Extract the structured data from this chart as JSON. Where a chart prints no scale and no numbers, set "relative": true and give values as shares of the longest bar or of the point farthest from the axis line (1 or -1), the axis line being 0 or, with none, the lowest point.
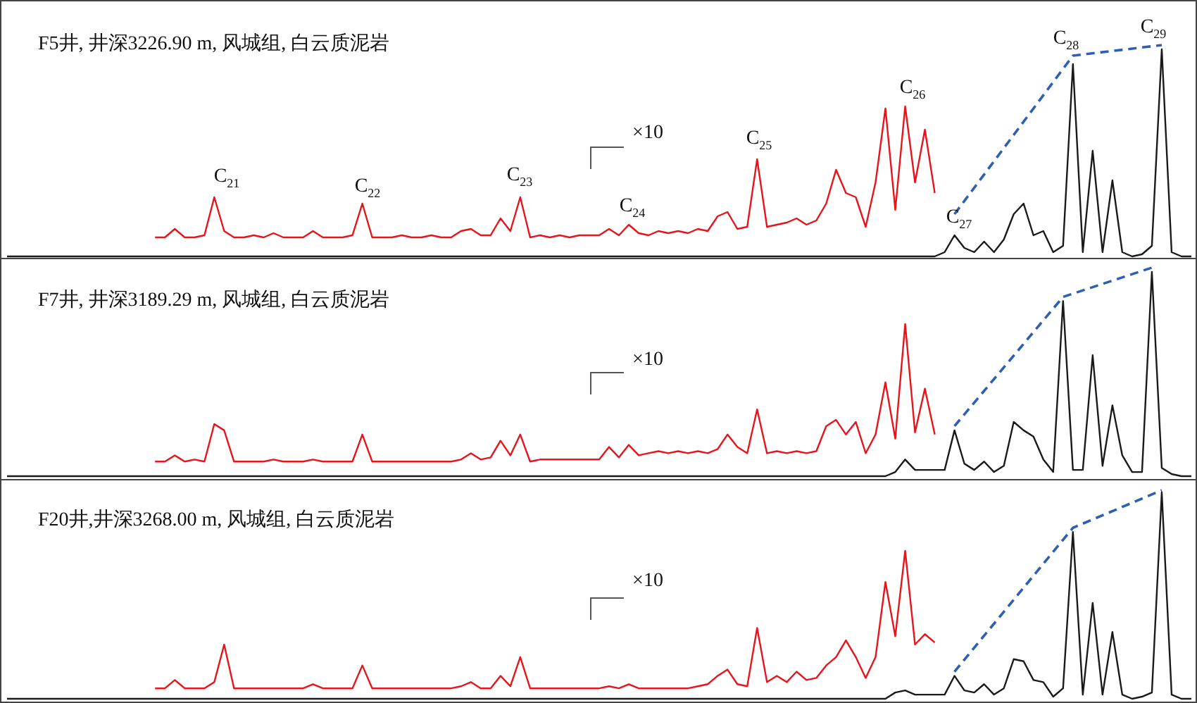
{
  "chart_data": [
    {
      "type": "line",
      "title": "F5井, 井深3226.90 m, 风城组, 白云质泥岩",
      "relative": true,
      "marker": "none",
      "categories": [
        null,
        null,
        null,
        null,
        null,
        null,
        null,
        null,
        null,
        null,
        null,
        null,
        null,
        null,
        null,
        null,
        null,
        null,
        null,
        null,
        null,
        null,
        null,
        null,
        null,
        null,
        null,
        null,
        null,
        null,
        null,
        null,
        null,
        null,
        null,
        null,
        null,
        null,
        null,
        null,
        null,
        null,
        null,
        null,
        null,
        null,
        null,
        null,
        null,
        null,
        null,
        null,
        null,
        null,
        null,
        null,
        null,
        null,
        null,
        null,
        null,
        null,
        null,
        null,
        null,
        null,
        null,
        null,
        null,
        null,
        null,
        null,
        null,
        null,
        null,
        null,
        null,
        null,
        null,
        null,
        null,
        null,
        null,
        null,
        null,
        null,
        null,
        null,
        null,
        null,
        null,
        null,
        null,
        null,
        null,
        null,
        null,
        null,
        null,
        null,
        null,
        null,
        null,
        null,
        null,
        null,
        null,
        null,
        null,
        null,
        null,
        null,
        null,
        null,
        null,
        null,
        null,
        null,
        null,
        null,
        null
      ],
      "series": [
        {
          "color": "#e8141c",
          "values": [
            null,
            null,
            null,
            null,
            null,
            null,
            null,
            null,
            null,
            null,
            null,
            null,
            null,
            null,
            null,
            0.09,
            0.09,
            0.13,
            0.09,
            0.09,
            0.1,
            0.28,
            0.12,
            0.09,
            0.09,
            0.1,
            0.09,
            0.11,
            0.09,
            0.09,
            0.09,
            0.12,
            0.09,
            0.09,
            0.09,
            0.1,
            0.25,
            0.09,
            0.09,
            0.09,
            0.1,
            0.09,
            0.09,
            0.1,
            0.09,
            0.09,
            0.12,
            0.13,
            0.1,
            0.1,
            0.18,
            0.12,
            0.28,
            0.09,
            0.1,
            0.09,
            0.1,
            0.09,
            0.1,
            0.1,
            0.1,
            0.13,
            0.1,
            0.15,
            0.11,
            0.1,
            0.12,
            0.11,
            0.12,
            0.11,
            0.13,
            0.12,
            0.19,
            0.21,
            0.13,
            0.14,
            0.46,
            0.14,
            0.15,
            0.16,
            0.18,
            0.15,
            0.17,
            0.25,
            0.41,
            0.3,
            0.28,
            0.14,
            0.35,
            0.7,
            0.22,
            0.71,
            0.35,
            0.6,
            0.3,
            null,
            null,
            null,
            null,
            null,
            null,
            null,
            null,
            null,
            null,
            null,
            null,
            null,
            null,
            null,
            null,
            null,
            null,
            null,
            null,
            null,
            null,
            null,
            null,
            null,
            null
          ]
        },
        {
          "color": "#1a1a1a",
          "values": [
            0,
            0,
            0,
            0,
            0,
            0,
            0,
            0,
            0,
            0,
            0,
            0,
            0,
            0,
            0,
            0,
            0,
            0,
            0,
            0,
            0,
            0,
            0,
            0,
            0,
            0,
            0,
            0,
            0,
            0,
            0,
            0,
            0,
            0,
            0,
            0,
            0,
            0,
            0,
            0,
            0,
            0,
            0,
            0,
            0,
            0,
            0,
            0,
            0,
            0,
            0,
            0,
            0,
            0,
            0,
            0,
            0,
            0,
            0,
            0,
            0,
            0,
            0,
            0,
            0,
            0,
            0,
            0,
            0,
            0,
            0,
            0,
            0,
            0,
            0,
            0,
            0,
            0,
            0,
            0,
            0,
            0,
            0,
            0,
            0,
            0,
            0,
            0,
            0,
            0,
            0,
            0,
            0,
            0,
            0,
            0.02,
            0.1,
            0.04,
            0.02,
            0.07,
            0.02,
            0.08,
            0.2,
            0.25,
            0.1,
            0.12,
            0.02,
            0.05,
            0.91,
            0.02,
            0.5,
            0.02,
            0.36,
            0.02,
            0,
            0.01,
            0.05,
            0.98,
            0.02,
            0,
            0
          ]
        },
        {
          "color": "#2f5fb3",
          "line_style": "dashed",
          "values": [
            null,
            null,
            null,
            null,
            null,
            null,
            null,
            null,
            null,
            null,
            null,
            null,
            null,
            null,
            null,
            null,
            null,
            null,
            null,
            null,
            null,
            null,
            null,
            null,
            null,
            null,
            null,
            null,
            null,
            null,
            null,
            null,
            null,
            null,
            null,
            null,
            null,
            null,
            null,
            null,
            null,
            null,
            null,
            null,
            null,
            null,
            null,
            null,
            null,
            null,
            null,
            null,
            null,
            null,
            null,
            null,
            null,
            null,
            null,
            null,
            null,
            null,
            null,
            null,
            null,
            null,
            null,
            null,
            null,
            null,
            null,
            null,
            null,
            null,
            null,
            null,
            null,
            null,
            null,
            null,
            null,
            null,
            null,
            null,
            null,
            null,
            null,
            null,
            null,
            null,
            null,
            null,
            null,
            null,
            null,
            null,
            0.2,
            null,
            null,
            null,
            null,
            null,
            null,
            null,
            null,
            null,
            null,
            null,
            0.95,
            null,
            null,
            null,
            null,
            null,
            null,
            null,
            null,
            1,
            null,
            null,
            null
          ]
        }
      ],
      "annotations": [
        "C$_{21}$",
        "C$_{22}$",
        "C$_{23}$",
        "C$_{24}$",
        "C$_{25}$",
        "C$_{26}$",
        "C$_{27}$",
        "C$_{28}$",
        "C$_{29}$",
        "×10"
      ]
    },
    {
      "type": "line",
      "title": "F7井, 井深3189.29 m, 风城组, 白云质泥岩",
      "relative": true,
      "marker": "none",
      "categories": [
        null,
        null,
        null,
        null,
        null,
        null,
        null,
        null,
        null,
        null,
        null,
        null,
        null,
        null,
        null,
        null,
        null,
        null,
        null,
        null,
        null,
        null,
        null,
        null,
        null,
        null,
        null,
        null,
        null,
        null,
        null,
        null,
        null,
        null,
        null,
        null,
        null,
        null,
        null,
        null,
        null,
        null,
        null,
        null,
        null,
        null,
        null,
        null,
        null,
        null,
        null,
        null,
        null,
        null,
        null,
        null,
        null,
        null,
        null,
        null,
        null,
        null,
        null,
        null,
        null,
        null,
        null,
        null,
        null,
        null,
        null,
        null,
        null,
        null,
        null,
        null,
        null,
        null,
        null,
        null,
        null,
        null,
        null,
        null,
        null,
        null,
        null,
        null,
        null,
        null,
        null,
        null,
        null,
        null,
        null,
        null,
        null,
        null,
        null,
        null,
        null,
        null,
        null,
        null,
        null,
        null,
        null,
        null,
        null,
        null,
        null,
        null,
        null,
        null,
        null,
        null,
        null,
        null,
        null,
        null,
        null
      ],
      "series": [
        {
          "color": "#e8141c",
          "values": [
            null,
            null,
            null,
            null,
            null,
            null,
            null,
            null,
            null,
            null,
            null,
            null,
            null,
            null,
            null,
            0.07,
            0.07,
            0.1,
            0.07,
            0.08,
            0.07,
            0.25,
            0.22,
            0.07,
            0.07,
            0.07,
            0.07,
            0.08,
            0.07,
            0.07,
            0.07,
            0.08,
            0.07,
            0.07,
            0.07,
            0.07,
            0.2,
            0.07,
            0.07,
            0.07,
            0.07,
            0.07,
            0.07,
            0.07,
            0.07,
            0.07,
            0.08,
            0.11,
            0.08,
            0.09,
            0.17,
            0.1,
            0.2,
            0.07,
            0.08,
            0.08,
            0.08,
            0.08,
            0.08,
            0.08,
            0.08,
            0.14,
            0.09,
            0.15,
            0.1,
            0.11,
            0.12,
            0.11,
            0.12,
            0.11,
            0.12,
            0.11,
            0.13,
            0.2,
            0.14,
            0.11,
            0.32,
            0.11,
            0.12,
            0.11,
            0.12,
            0.11,
            0.12,
            0.24,
            0.27,
            0.2,
            0.26,
            0.11,
            0.2,
            0.45,
            0.18,
            0.73,
            0.21,
            0.42,
            0.2,
            null,
            null,
            null,
            null,
            null,
            null,
            null,
            null,
            null,
            null,
            null,
            null,
            null,
            null,
            null,
            null,
            null,
            null,
            null,
            null,
            null,
            null,
            null,
            null,
            null,
            null
          ]
        },
        {
          "color": "#1a1a1a",
          "values": [
            0,
            0,
            0,
            0,
            0,
            0,
            0,
            0,
            0,
            0,
            0,
            0,
            0,
            0,
            0,
            0,
            0,
            0,
            0,
            0,
            0,
            0,
            0,
            0,
            0,
            0,
            0,
            0,
            0,
            0,
            0,
            0,
            0,
            0,
            0,
            0,
            0,
            0,
            0,
            0,
            0,
            0,
            0,
            0,
            0,
            0,
            0,
            0,
            0,
            0,
            0,
            0,
            0,
            0,
            0,
            0,
            0,
            0,
            0,
            0,
            0,
            0,
            0,
            0,
            0,
            0,
            0,
            0,
            0,
            0,
            0,
            0,
            0,
            0,
            0,
            0,
            0,
            0,
            0,
            0,
            0,
            0,
            0,
            0,
            0,
            0,
            0,
            0,
            0,
            0,
            0.02,
            0.08,
            0.03,
            0.03,
            0.03,
            0.03,
            0.22,
            0.06,
            0.03,
            0.07,
            0.02,
            0.05,
            0.26,
            0.22,
            0.19,
            0.08,
            0.02,
            0.84,
            0.03,
            0.03,
            0.58,
            0.05,
            0.34,
            0.1,
            0.02,
            0.02,
            0.98,
            0.04,
            0.01,
            0,
            0
          ]
        },
        {
          "color": "#2f5fb3",
          "line_style": "dashed",
          "values": [
            null,
            null,
            null,
            null,
            null,
            null,
            null,
            null,
            null,
            null,
            null,
            null,
            null,
            null,
            null,
            null,
            null,
            null,
            null,
            null,
            null,
            null,
            null,
            null,
            null,
            null,
            null,
            null,
            null,
            null,
            null,
            null,
            null,
            null,
            null,
            null,
            null,
            null,
            null,
            null,
            null,
            null,
            null,
            null,
            null,
            null,
            null,
            null,
            null,
            null,
            null,
            null,
            null,
            null,
            null,
            null,
            null,
            null,
            null,
            null,
            null,
            null,
            null,
            null,
            null,
            null,
            null,
            null,
            null,
            null,
            null,
            null,
            null,
            null,
            null,
            null,
            null,
            null,
            null,
            null,
            null,
            null,
            null,
            null,
            null,
            null,
            null,
            null,
            null,
            null,
            null,
            null,
            null,
            null,
            null,
            null,
            0.24,
            null,
            null,
            null,
            null,
            null,
            null,
            null,
            null,
            null,
            null,
            0.86,
            null,
            null,
            null,
            null,
            null,
            null,
            null,
            null,
            1,
            null,
            null,
            null,
            null
          ]
        }
      ],
      "annotations": [
        "×10"
      ]
    },
    {
      "type": "line",
      "title": "F20井,井深3268.00 m, 风城组, 白云质泥岩",
      "relative": true,
      "marker": "none",
      "categories": [
        null,
        null,
        null,
        null,
        null,
        null,
        null,
        null,
        null,
        null,
        null,
        null,
        null,
        null,
        null,
        null,
        null,
        null,
        null,
        null,
        null,
        null,
        null,
        null,
        null,
        null,
        null,
        null,
        null,
        null,
        null,
        null,
        null,
        null,
        null,
        null,
        null,
        null,
        null,
        null,
        null,
        null,
        null,
        null,
        null,
        null,
        null,
        null,
        null,
        null,
        null,
        null,
        null,
        null,
        null,
        null,
        null,
        null,
        null,
        null,
        null,
        null,
        null,
        null,
        null,
        null,
        null,
        null,
        null,
        null,
        null,
        null,
        null,
        null,
        null,
        null,
        null,
        null,
        null,
        null,
        null,
        null,
        null,
        null,
        null,
        null,
        null,
        null,
        null,
        null,
        null,
        null,
        null,
        null,
        null,
        null,
        null,
        null,
        null,
        null,
        null,
        null,
        null,
        null,
        null,
        null,
        null,
        null,
        null,
        null,
        null,
        null,
        null,
        null,
        null,
        null,
        null,
        null,
        null,
        null,
        null
      ],
      "series": [
        {
          "color": "#e8141c",
          "values": [
            null,
            null,
            null,
            null,
            null,
            null,
            null,
            null,
            null,
            null,
            null,
            null,
            null,
            null,
            null,
            0.05,
            0.05,
            0.09,
            0.05,
            0.05,
            0.05,
            0.08,
            0.26,
            0.05,
            0.05,
            0.05,
            0.05,
            0.05,
            0.05,
            0.05,
            0.05,
            0.07,
            0.05,
            0.05,
            0.05,
            0.05,
            0.16,
            0.05,
            0.05,
            0.05,
            0.05,
            0.05,
            0.05,
            0.05,
            0.05,
            0.05,
            0.06,
            0.08,
            0.05,
            0.05,
            0.11,
            0.06,
            0.2,
            0.05,
            0.05,
            0.05,
            0.05,
            0.05,
            0.05,
            0.05,
            0.05,
            0.06,
            0.05,
            0.07,
            0.05,
            0.05,
            0.05,
            0.05,
            0.05,
            0.05,
            0.06,
            0.07,
            0.11,
            0.14,
            0.07,
            0.06,
            0.34,
            0.08,
            0.11,
            0.08,
            0.13,
            0.09,
            0.1,
            0.16,
            0.2,
            0.28,
            0.2,
            0.1,
            0.2,
            0.56,
            0.3,
            0.71,
            0.26,
            0.31,
            0.27,
            null,
            null,
            null,
            null,
            null,
            null,
            null,
            null,
            null,
            null,
            null,
            null,
            null,
            null,
            null,
            null,
            null,
            null,
            null,
            null,
            null,
            null,
            null,
            null,
            null,
            null
          ]
        },
        {
          "color": "#1a1a1a",
          "values": [
            0,
            0,
            0,
            0,
            0,
            0,
            0,
            0,
            0,
            0,
            0,
            0,
            0,
            0,
            0,
            0,
            0,
            0,
            0,
            0,
            0,
            0,
            0,
            0,
            0,
            0,
            0,
            0,
            0,
            0,
            0,
            0,
            0,
            0,
            0,
            0,
            0,
            0,
            0,
            0,
            0,
            0,
            0,
            0,
            0,
            0,
            0,
            0,
            0,
            0,
            0,
            0,
            0,
            0,
            0,
            0,
            0,
            0,
            0,
            0,
            0,
            0,
            0,
            0,
            0,
            0,
            0,
            0,
            0,
            0,
            0,
            0,
            0,
            0,
            0,
            0,
            0,
            0,
            0,
            0,
            0,
            0,
            0,
            0,
            0,
            0,
            0,
            0,
            0,
            0,
            0.03,
            0.04,
            0.02,
            0.02,
            0.02,
            0.02,
            0.11,
            0.04,
            0.03,
            0.07,
            0.02,
            0.05,
            0.19,
            0.18,
            0.09,
            0.08,
            0.01,
            0.05,
            0.8,
            0.02,
            0.46,
            0.02,
            0.32,
            0.02,
            0,
            0.01,
            0.03,
            0.99,
            0.02,
            0,
            0
          ]
        },
        {
          "color": "#2f5fb3",
          "line_style": "dashed",
          "values": [
            null,
            null,
            null,
            null,
            null,
            null,
            null,
            null,
            null,
            null,
            null,
            null,
            null,
            null,
            null,
            null,
            null,
            null,
            null,
            null,
            null,
            null,
            null,
            null,
            null,
            null,
            null,
            null,
            null,
            null,
            null,
            null,
            null,
            null,
            null,
            null,
            null,
            null,
            null,
            null,
            null,
            null,
            null,
            null,
            null,
            null,
            null,
            null,
            null,
            null,
            null,
            null,
            null,
            null,
            null,
            null,
            null,
            null,
            null,
            null,
            null,
            null,
            null,
            null,
            null,
            null,
            null,
            null,
            null,
            null,
            null,
            null,
            null,
            null,
            null,
            null,
            null,
            null,
            null,
            null,
            null,
            null,
            null,
            null,
            null,
            null,
            null,
            null,
            null,
            null,
            null,
            null,
            null,
            null,
            null,
            null,
            0.13,
            null,
            null,
            null,
            null,
            null,
            null,
            null,
            null,
            null,
            null,
            null,
            0.82,
            null,
            null,
            null,
            null,
            null,
            null,
            null,
            null,
            1,
            null,
            null,
            null
          ]
        }
      ],
      "annotations": [
        "×10"
      ]
    }
  ]
}
